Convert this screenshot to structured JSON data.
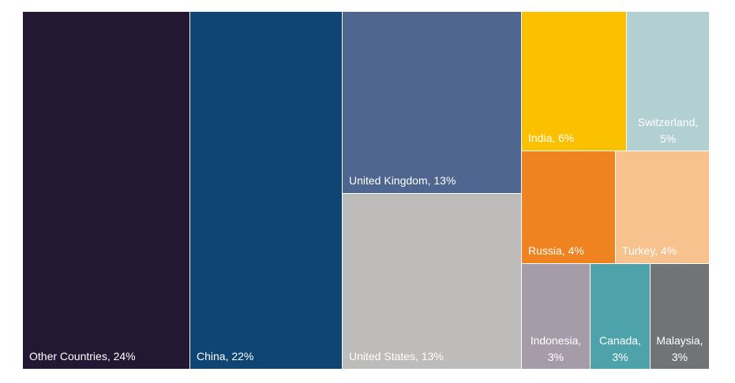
{
  "chart_data": {
    "type": "treemap",
    "title": "",
    "items": [
      {
        "name": "Other Countries",
        "value": 24,
        "label": "Other Countries, 24%",
        "color": "#241733"
      },
      {
        "name": "China",
        "value": 22,
        "label": "China, 22%",
        "color": "#0f4573"
      },
      {
        "name": "United Kingdom",
        "value": 13,
        "label": "United Kingdom, 13%",
        "color": "#4e658f"
      },
      {
        "name": "United States",
        "value": 13,
        "label": "United States, 13%",
        "color": "#bdbcbb"
      },
      {
        "name": "India",
        "value": 6,
        "label": "India, 6%",
        "color": "#fbc100"
      },
      {
        "name": "Switzerland",
        "value": 5,
        "label": "Switzerland, 5%",
        "color": "#b2cfd2"
      },
      {
        "name": "Russia",
        "value": 4,
        "label": "Russia, 4%",
        "color": "#ef8320"
      },
      {
        "name": "Turkey",
        "value": 4,
        "label": "Turkey, 4%",
        "color": "#f8c28f"
      },
      {
        "name": "Indonesia",
        "value": 3,
        "label": "Indonesia, 3%",
        "color": "#a69ca9"
      },
      {
        "name": "Canada",
        "value": 3,
        "label": "Canada, 3%",
        "color": "#4ea3aa"
      },
      {
        "name": "Malaysia",
        "value": 3,
        "label": "Malaysia, 3%",
        "color": "#717477"
      }
    ]
  }
}
